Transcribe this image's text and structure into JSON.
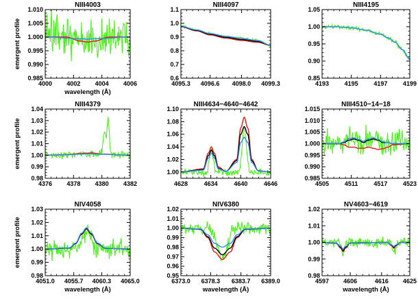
{
  "colors": {
    "observed": "#4cf01a",
    "red": "#e8160e",
    "black": "#000000",
    "blue": "#2b8cf2"
  },
  "chart_data": [
    {
      "type": "line",
      "title": "NIII4003",
      "xlabel": "wavelength (Å)",
      "ylabel": "emergent profile",
      "xlim": [
        4000,
        4006
      ],
      "ylim": [
        0.985,
        1.01
      ],
      "xticks": [
        4000,
        4002,
        4004,
        4006
      ],
      "xtick_labels": [
        "4000",
        "4002",
        "4004",
        "4006"
      ],
      "yticks": [
        0.985,
        0.99,
        0.995,
        1.0,
        1.005,
        1.01
      ],
      "ytick_labels": [
        "0.985",
        "0.990",
        "0.995",
        "1.000",
        "1.005",
        "1.010"
      ],
      "observed_noise": 0.0048,
      "noise_seed": 11,
      "models": [
        {
          "color": "red",
          "x": [
            4000,
            4001.5,
            4002.5,
            4003,
            4003.5,
            4004.5,
            4006
          ],
          "y": [
            1.0,
            1.0,
            0.9985,
            0.9982,
            0.9985,
            1.0,
            1.0
          ]
        },
        {
          "color": "blue",
          "x": [
            4000,
            4002.5,
            4003,
            4003.5,
            4006
          ],
          "y": [
            1.0,
            0.9994,
            0.9992,
            0.9994,
            1.0
          ]
        }
      ]
    },
    {
      "type": "line",
      "title": "NIII4097",
      "xlabel": "",
      "ylabel": "",
      "xlim": [
        4095.3,
        4099.3
      ],
      "ylim": [
        0.6,
        1.1
      ],
      "xticks": [
        4095.3,
        4096.6,
        4098.0,
        4099.3
      ],
      "xtick_labels": [
        "4095.3",
        "4096.6",
        "4098.0",
        "4099.3"
      ],
      "yticks": [
        0.6,
        0.7,
        0.8,
        0.9,
        1.0,
        1.1
      ],
      "ytick_labels": [
        "0.6",
        "0.7",
        "0.8",
        "0.9",
        "1.0",
        "1.1"
      ],
      "observed_noise": 0.006,
      "noise_seed": 12,
      "models": [
        {
          "color": "red",
          "x": [
            4095.3,
            4096.0,
            4096.6,
            4097.3,
            4098.0,
            4098.7,
            4099.3
          ],
          "y": [
            0.975,
            0.945,
            0.915,
            0.892,
            0.875,
            0.862,
            0.84
          ]
        },
        {
          "color": "black",
          "x": [
            4095.3,
            4096.0,
            4096.6,
            4097.3,
            4098.0,
            4098.7,
            4099.3
          ],
          "y": [
            0.976,
            0.948,
            0.92,
            0.898,
            0.882,
            0.868,
            0.84
          ]
        },
        {
          "color": "blue",
          "x": [
            4095.3,
            4096.0,
            4096.6,
            4097.3,
            4098.0,
            4098.7,
            4099.3
          ],
          "y": [
            0.978,
            0.952,
            0.925,
            0.905,
            0.89,
            0.875,
            0.84
          ]
        }
      ]
    },
    {
      "type": "line",
      "title": "NIII4195",
      "xlabel": "",
      "ylabel": "",
      "xlim": [
        4193,
        4199
      ],
      "ylim": [
        0.85,
        1.05
      ],
      "xticks": [
        4193,
        4195,
        4197,
        4199
      ],
      "xtick_labels": [
        "4193",
        "4195",
        "4197",
        "4199"
      ],
      "yticks": [
        0.85,
        0.9,
        0.95,
        1.0,
        1.05
      ],
      "ytick_labels": [
        "0.85",
        "0.90",
        "0.95",
        "1.00",
        "1.05"
      ],
      "observed_noise": 0.004,
      "noise_seed": 13,
      "models": [
        {
          "color": "blue",
          "x": [
            4193,
            4194,
            4195,
            4196,
            4197,
            4197.5,
            4198,
            4198.5,
            4199
          ],
          "y": [
            1.0,
            1.0,
            0.997,
            0.99,
            0.978,
            0.968,
            0.955,
            0.933,
            0.905
          ]
        }
      ]
    },
    {
      "type": "line",
      "title": "NIII4379",
      "xlabel": "",
      "ylabel": "emergent profile",
      "xlim": [
        4376,
        4382
      ],
      "ylim": [
        0.98,
        1.04
      ],
      "xticks": [
        4376,
        4378,
        4380,
        4382
      ],
      "xtick_labels": [
        "4376",
        "4378",
        "4380",
        "4382"
      ],
      "yticks": [
        0.98,
        0.99,
        1.0,
        1.01,
        1.02,
        1.03,
        1.04
      ],
      "ytick_labels": [
        "0.98",
        "0.99",
        "1.00",
        "1.01",
        "1.02",
        "1.03",
        "1.04"
      ],
      "observed_noise": 0.0018,
      "noise_seed": 14,
      "observed_features": [
        {
          "x": 4380.2,
          "y": 1.02,
          "w": 0.15
        },
        {
          "x": 4380.45,
          "y": 1.03,
          "w": 0.1
        }
      ],
      "models": [
        {
          "color": "red",
          "x": [
            4376,
            4377.5,
            4378.5,
            4379.3,
            4380,
            4382
          ],
          "y": [
            1.0,
            1.0005,
            1.0015,
            1.002,
            1.001,
            1.0
          ]
        },
        {
          "color": "blue",
          "x": [
            4376,
            4377.5,
            4378.5,
            4379.3,
            4380,
            4382
          ],
          "y": [
            1.0,
            1.0003,
            1.001,
            1.0012,
            1.0008,
            1.0
          ]
        }
      ]
    },
    {
      "type": "line",
      "title": "NIII4634−4640−4642",
      "xlabel": "",
      "ylabel": "",
      "xlim": [
        4628,
        4646
      ],
      "ylim": [
        0.99,
        1.1
      ],
      "xticks": [
        4628,
        4634,
        4640,
        4646
      ],
      "xtick_labels": [
        "4628",
        "4634",
        "4640",
        "4646"
      ],
      "yticks": [
        1.0,
        1.02,
        1.04,
        1.06,
        1.08,
        1.1
      ],
      "ytick_labels": [
        "1.00",
        "1.02",
        "1.04",
        "1.06",
        "1.08",
        "1.10"
      ],
      "observed_noise": 0.004,
      "noise_seed": 15,
      "observed_lines": [
        {
          "x": 4634.1,
          "amp": 0.036,
          "w": 0.55
        },
        {
          "x": 4640.7,
          "amp": 0.07,
          "w": 0.6
        }
      ],
      "models": [
        {
          "color": "red",
          "x": [
            4628,
            4632.5,
            4633.5,
            4634.1,
            4634.7,
            4635.5,
            4637,
            4639.2,
            4640,
            4640.7,
            4641.4,
            4642.2,
            4643.5,
            4646
          ],
          "y": [
            1.0,
            1.005,
            1.03,
            1.04,
            1.03,
            1.008,
            1.001,
            1.02,
            1.07,
            1.087,
            1.07,
            1.02,
            1.002,
            1.0
          ]
        },
        {
          "color": "black",
          "x": [
            4628,
            4632.5,
            4633.5,
            4634.1,
            4634.7,
            4635.5,
            4637,
            4639.2,
            4640,
            4640.7,
            4641.4,
            4642.2,
            4643.5,
            4646
          ],
          "y": [
            1.0,
            1.004,
            1.026,
            1.035,
            1.026,
            1.006,
            1.001,
            1.018,
            1.06,
            1.072,
            1.06,
            1.018,
            1.002,
            1.0
          ]
        },
        {
          "color": "blue",
          "x": [
            4628,
            4632.5,
            4633.5,
            4634.1,
            4634.7,
            4635.5,
            4637,
            4639.2,
            4640,
            4640.7,
            4641.4,
            4642.2,
            4643.5,
            4646
          ],
          "y": [
            1.0,
            1.003,
            1.022,
            1.03,
            1.022,
            1.005,
            1.001,
            1.015,
            1.047,
            1.055,
            1.047,
            1.015,
            1.002,
            1.0
          ]
        }
      ]
    },
    {
      "type": "line",
      "title": "NIII4510−14−18",
      "xlabel": "",
      "ylabel": "",
      "xlim": [
        4505,
        4523
      ],
      "ylim": [
        0.985,
        1.015
      ],
      "xticks": [
        4505,
        4511,
        4517,
        4523
      ],
      "xtick_labels": [
        "4505",
        "4511",
        "4517",
        "4523"
      ],
      "yticks": [
        0.985,
        0.99,
        0.995,
        1.0,
        1.005,
        1.01,
        1.015
      ],
      "ytick_labels": [
        "0.985",
        "0.990",
        "0.995",
        "1.000",
        "1.005",
        "1.010",
        "1.015"
      ],
      "observed_noise": 0.0035,
      "noise_seed": 16,
      "models": [
        {
          "color": "red",
          "x": [
            4505,
            4508.5,
            4509.5,
            4510.5,
            4511.5,
            4512.5,
            4513.5,
            4514.5,
            4515.5,
            4516.5,
            4517.5,
            4518.5,
            4519.5,
            4523
          ],
          "y": [
            1.0,
            1.0,
            0.9995,
            0.9985,
            0.9985,
            0.998,
            0.998,
            0.9985,
            0.998,
            0.9975,
            0.9978,
            0.9985,
            0.9995,
            1.0
          ]
        },
        {
          "color": "black",
          "x": [
            4505,
            4508.5,
            4509.5,
            4510.5,
            4511.5,
            4512.5,
            4513.5,
            4514.5,
            4515.5,
            4516.5,
            4517.5,
            4518.5,
            4519.5,
            4523
          ],
          "y": [
            1.0,
            1.0,
            1.0005,
            1.0015,
            1.002,
            1.0015,
            1.0005,
            1.0015,
            1.002,
            1.0015,
            1.0005,
            1.0005,
            1.0,
            1.0
          ]
        },
        {
          "color": "blue",
          "x": [
            4505,
            4508.5,
            4509.5,
            4510.5,
            4511.5,
            4512.5,
            4513.5,
            4514.5,
            4515.5,
            4516.5,
            4517.5,
            4518.5,
            4519.5,
            4523
          ],
          "y": [
            1.0,
            1.0,
            1.0008,
            1.0022,
            1.0025,
            1.0018,
            1.001,
            1.002,
            1.0025,
            1.0018,
            1.0008,
            1.0005,
            1.0,
            1.0
          ]
        }
      ]
    },
    {
      "type": "line",
      "title": "NIV4058",
      "xlabel": "wavelength (Å)",
      "ylabel": "emergent profile",
      "xlim": [
        4051.0,
        4065.0
      ],
      "ylim": [
        0.98,
        1.03
      ],
      "xticks": [
        4051.0,
        4055.7,
        4060.3,
        4065.0
      ],
      "xtick_labels": [
        "4051.0",
        "4055.7",
        "4060.3",
        "4065.0"
      ],
      "yticks": [
        0.98,
        0.99,
        1.0,
        1.01,
        1.02,
        1.03
      ],
      "ytick_labels": [
        "0.98",
        "0.99",
        "1.00",
        "1.01",
        "1.02",
        "1.03"
      ],
      "observed_noise": 0.0045,
      "noise_seed": 17,
      "observed_lines": [
        {
          "x": 4057.8,
          "amp": 0.014,
          "w": 1.0
        }
      ],
      "models": [
        {
          "color": "red",
          "x": [
            4051,
            4055,
            4056,
            4057,
            4057.8,
            4058.6,
            4059.6,
            4061,
            4065
          ],
          "y": [
            1.0,
            1.0008,
            1.004,
            1.011,
            1.015,
            1.011,
            1.004,
            1.0005,
            1.0
          ]
        },
        {
          "color": "black",
          "x": [
            4051,
            4055,
            4056,
            4057,
            4057.8,
            4058.6,
            4059.6,
            4061,
            4065
          ],
          "y": [
            1.0,
            1.0008,
            1.0042,
            1.0115,
            1.0155,
            1.0115,
            1.0042,
            1.0005,
            1.0
          ]
        },
        {
          "color": "blue",
          "x": [
            4051,
            4055,
            4056,
            4057,
            4057.8,
            4058.6,
            4059.6,
            4061,
            4065
          ],
          "y": [
            1.0,
            1.001,
            1.0045,
            1.012,
            1.016,
            1.012,
            1.0045,
            1.0006,
            1.0
          ]
        }
      ]
    },
    {
      "type": "line",
      "title": "NIV6380",
      "xlabel": "wavelength (Å)",
      "ylabel": "",
      "xlim": [
        6373.0,
        6389.0
      ],
      "ylim": [
        0.95,
        1.02
      ],
      "xticks": [
        6373.0,
        6378.3,
        6383.7,
        6389.0
      ],
      "xtick_labels": [
        "6373.0",
        "6378.3",
        "6383.7",
        "6389.0"
      ],
      "yticks": [
        0.95,
        0.96,
        0.97,
        0.98,
        0.99,
        1.0,
        1.01,
        1.02
      ],
      "ytick_labels": [
        "0.95",
        "0.96",
        "0.97",
        "0.98",
        "0.99",
        "1.00",
        "1.01",
        "1.02"
      ],
      "observed_noise": 0.004,
      "noise_seed": 18,
      "observed_lines": [
        {
          "x": 6380.4,
          "amp": -0.032,
          "w": 1.2
        }
      ],
      "models": [
        {
          "color": "red",
          "x": [
            6373,
            6376.5,
            6377.8,
            6379,
            6380.4,
            6381.8,
            6383,
            6384.5,
            6389
          ],
          "y": [
            1.0,
            0.999,
            0.99,
            0.975,
            0.967,
            0.975,
            0.99,
            0.999,
            1.0
          ]
        },
        {
          "color": "black",
          "x": [
            6373,
            6376.5,
            6377.8,
            6379,
            6380.4,
            6381.8,
            6383,
            6384.5,
            6389
          ],
          "y": [
            1.0,
            0.999,
            0.991,
            0.979,
            0.972,
            0.979,
            0.991,
            0.999,
            1.0
          ]
        },
        {
          "color": "blue",
          "x": [
            6373,
            6376.5,
            6377.8,
            6379,
            6380.4,
            6381.8,
            6383,
            6384.5,
            6389
          ],
          "y": [
            1.0,
            0.9993,
            0.993,
            0.984,
            0.98,
            0.984,
            0.993,
            0.9993,
            1.0
          ]
        }
      ]
    },
    {
      "type": "line",
      "title": "NV4603−4619",
      "xlabel": "wavelength (Å)",
      "ylabel": "",
      "xlim": [
        4597,
        4625
      ],
      "ylim": [
        0.98,
        1.02
      ],
      "xticks": [
        4597,
        4606,
        4616,
        4625
      ],
      "xtick_labels": [
        "4597",
        "4606",
        "4616",
        "4625"
      ],
      "yticks": [
        0.98,
        0.99,
        1.0,
        1.01,
        1.02
      ],
      "ytick_labels": [
        "0.98",
        "0.99",
        "1.00",
        "1.01",
        "1.02"
      ],
      "observed_noise": 0.002,
      "noise_seed": 19,
      "observed_lines": [
        {
          "x": 4603.7,
          "amp": -0.008,
          "w": 0.6
        },
        {
          "x": 4619.9,
          "amp": -0.006,
          "w": 0.6
        }
      ],
      "models": [
        {
          "color": "red",
          "x": [
            4597,
            4601.5,
            4603,
            4603.7,
            4604.4,
            4606,
            4617.8,
            4619.3,
            4619.9,
            4620.5,
            4622,
            4625
          ],
          "y": [
            1.0,
            0.9995,
            0.9965,
            0.9945,
            0.9965,
            0.9997,
            1.0,
            0.998,
            0.9965,
            0.998,
            1.0,
            1.0
          ]
        },
        {
          "color": "black",
          "x": [
            4597,
            4601.5,
            4603,
            4603.7,
            4604.4,
            4606,
            4617.8,
            4619.3,
            4619.9,
            4620.5,
            4622,
            4625
          ],
          "y": [
            1.0,
            0.9996,
            0.997,
            0.995,
            0.997,
            0.9997,
            1.0,
            0.9982,
            0.997,
            0.9982,
            1.0,
            1.0
          ]
        },
        {
          "color": "blue",
          "x": [
            4597,
            4601.5,
            4603,
            4603.7,
            4604.4,
            4606,
            4617.8,
            4619.3,
            4619.9,
            4620.5,
            4622,
            4625
          ],
          "y": [
            1.0,
            0.9997,
            0.9975,
            0.996,
            0.9975,
            0.9998,
            1.0,
            0.9985,
            0.9975,
            0.9985,
            1.0,
            1.0
          ]
        }
      ]
    }
  ]
}
